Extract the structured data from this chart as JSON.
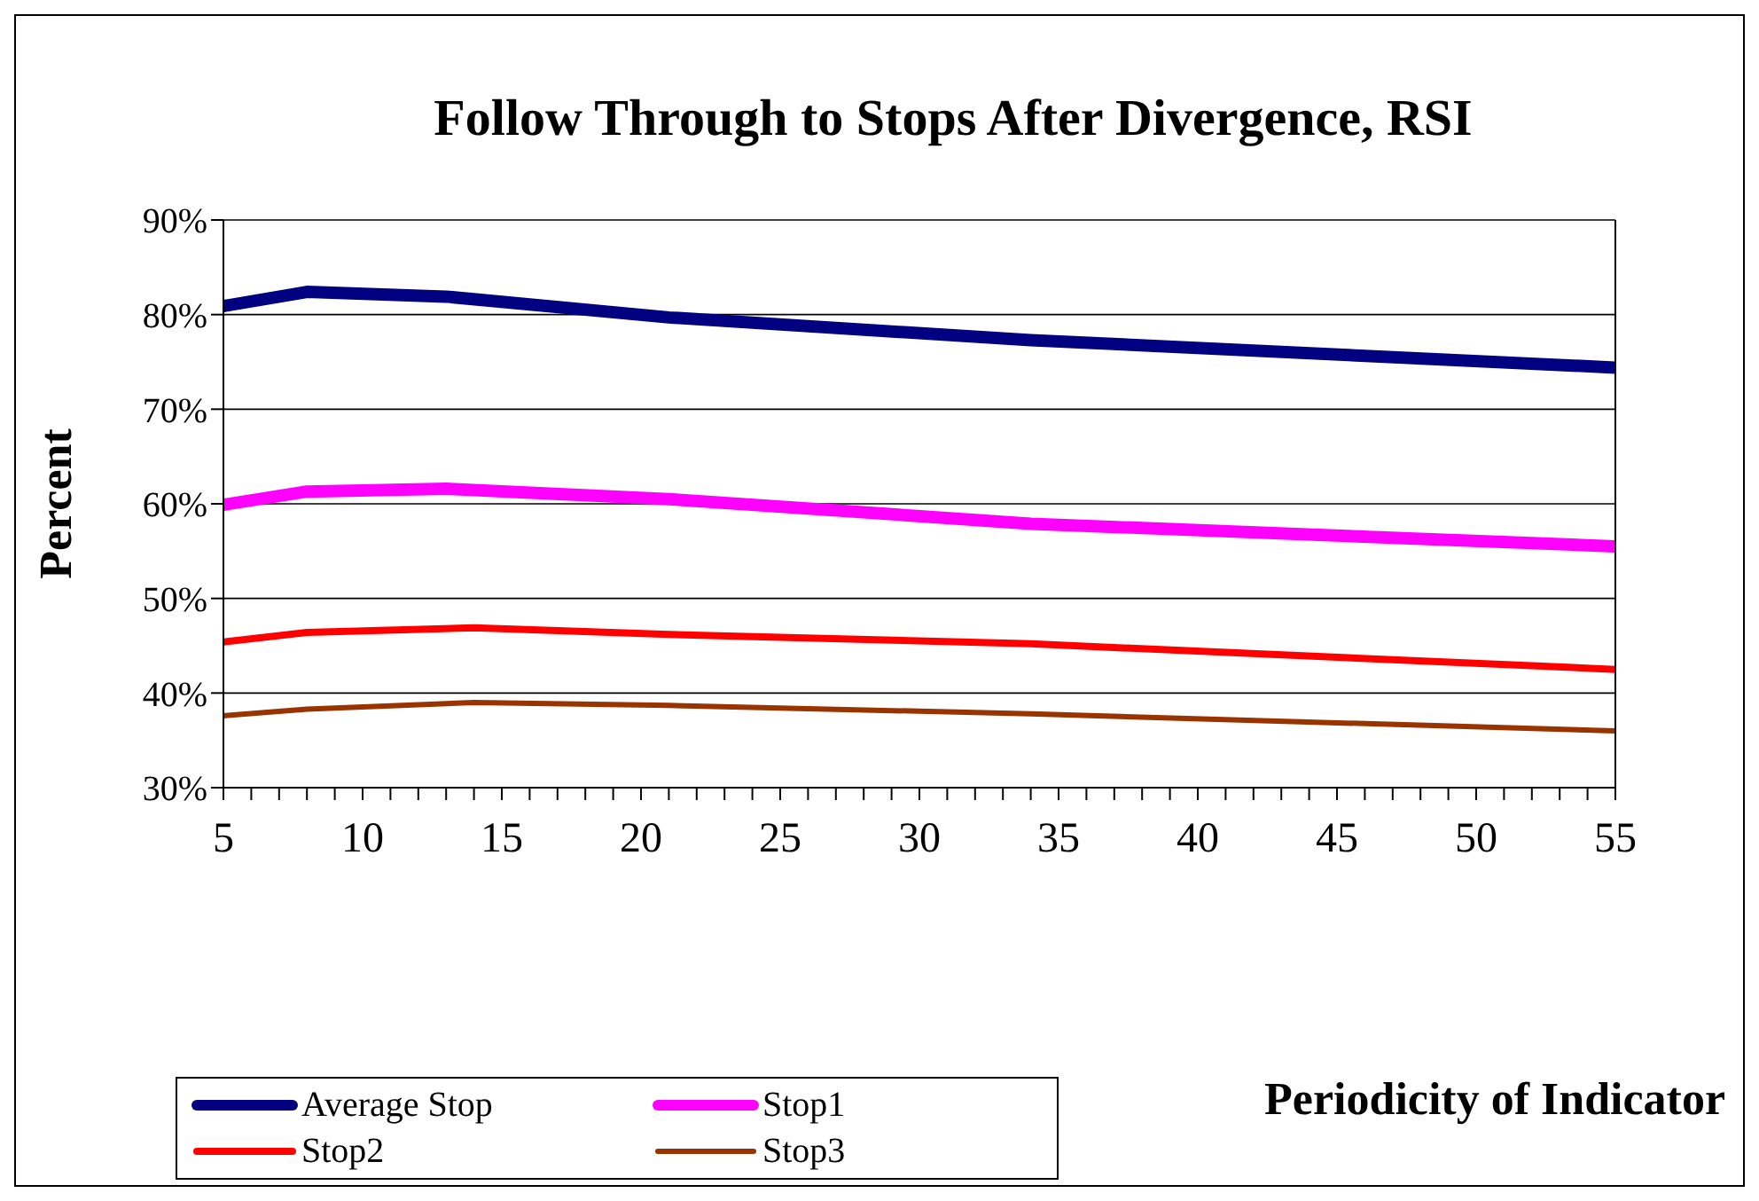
{
  "chart_data": {
    "type": "line",
    "title": "Follow Through to Stops After Divergence, RSI",
    "xlabel": "Periodicity of Indicator",
    "ylabel": "Percent",
    "xlim": [
      5,
      55
    ],
    "xticks": [
      5,
      {
        "value": 6,
        "label": null
      },
      {
        "value": 7,
        "label": null
      },
      {
        "value": 8,
        "label": null
      },
      {
        "value": 9,
        "label": null
      },
      10,
      {
        "value": 11,
        "label": null
      },
      {
        "value": 12,
        "label": null
      },
      {
        "value": 13,
        "label": null
      },
      {
        "value": 14,
        "label": null
      },
      15,
      {
        "value": 16,
        "label": null
      },
      {
        "value": 17,
        "label": null
      },
      {
        "value": 18,
        "label": null
      },
      {
        "value": 19,
        "label": null
      },
      20,
      {
        "value": 21,
        "label": null
      },
      {
        "value": 22,
        "label": null
      },
      {
        "value": 23,
        "label": null
      },
      {
        "value": 24,
        "label": null
      },
      25,
      {
        "value": 26,
        "label": null
      },
      {
        "value": 27,
        "label": null
      },
      {
        "value": 28,
        "label": null
      },
      {
        "value": 29,
        "label": null
      },
      30,
      {
        "value": 31,
        "label": null
      },
      {
        "value": 32,
        "label": null
      },
      {
        "value": 33,
        "label": null
      },
      {
        "value": 34,
        "label": null
      },
      35,
      {
        "value": 36,
        "label": null
      },
      {
        "value": 37,
        "label": null
      },
      {
        "value": 38,
        "label": null
      },
      {
        "value": 39,
        "label": null
      },
      40,
      {
        "value": 41,
        "label": null
      },
      {
        "value": 42,
        "label": null
      },
      {
        "value": 43,
        "label": null
      },
      {
        "value": 44,
        "label": null
      },
      45,
      {
        "value": 46,
        "label": null
      },
      {
        "value": 47,
        "label": null
      },
      {
        "value": 48,
        "label": null
      },
      {
        "value": 49,
        "label": null
      },
      50,
      {
        "value": 51,
        "label": null
      },
      {
        "value": 52,
        "label": null
      },
      {
        "value": 53,
        "label": null
      },
      {
        "value": 54,
        "label": null
      },
      55
    ],
    "ylim": [
      30,
      90
    ],
    "yticks": [
      {
        "value": 30,
        "label": "30%"
      },
      {
        "value": 40,
        "label": "40%"
      },
      {
        "value": 50,
        "label": "50%"
      },
      {
        "value": 60,
        "label": "60%"
      },
      {
        "value": 70,
        "label": "70%"
      },
      {
        "value": 80,
        "label": "80%"
      },
      {
        "value": 90,
        "label": "90%"
      }
    ],
    "grid": "y",
    "legend": "bottom left",
    "marker": "none",
    "line_style": "solid",
    "series": [
      {
        "name": "Average Stop",
        "color": "#000080",
        "x": [
          5,
          8,
          13,
          21,
          34,
          55
        ],
        "values": [
          80.9,
          82.4,
          81.9,
          79.7,
          77.3,
          74.4
        ]
      },
      {
        "name": "Stop1",
        "color": "#ff00ff",
        "x": [
          5,
          8,
          13,
          21,
          34,
          55
        ],
        "values": [
          59.9,
          61.3,
          61.6,
          60.5,
          57.9,
          55.5
        ]
      },
      {
        "name": "Stop2",
        "color": "#ff0000",
        "x": [
          5,
          8,
          14,
          21,
          34,
          55
        ],
        "values": [
          45.4,
          46.4,
          46.9,
          46.2,
          45.2,
          42.5
        ]
      },
      {
        "name": "Stop3",
        "color": "#993300",
        "x": [
          5,
          8,
          14,
          21,
          34,
          55
        ],
        "values": [
          37.6,
          38.3,
          39.0,
          38.7,
          37.8,
          36.0
        ]
      }
    ]
  }
}
